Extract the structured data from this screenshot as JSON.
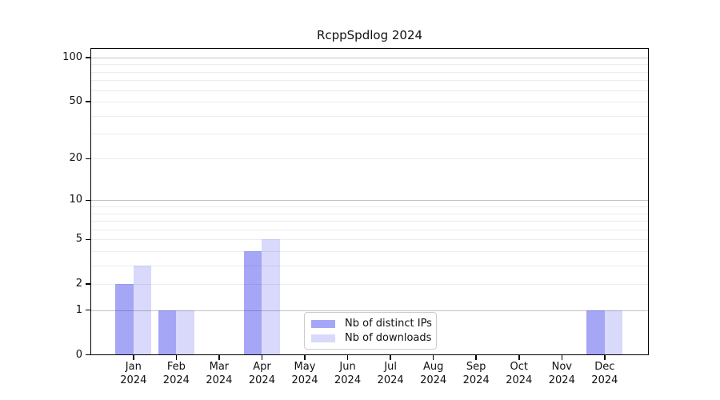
{
  "page": {
    "background": "#ffffff"
  },
  "chart_data": {
    "type": "bar",
    "title": "RcppSpdlog 2024",
    "xlabel": "",
    "ylabel": "",
    "categories": [
      "Jan",
      "Feb",
      "Mar",
      "Apr",
      "May",
      "Jun",
      "Jul",
      "Aug",
      "Sep",
      "Oct",
      "Nov",
      "Dec"
    ],
    "category_sublabel": "2024",
    "series": [
      {
        "name": "Nb of distinct IPs",
        "color": "rgba(20,20,235,0.38)",
        "values": [
          2,
          1,
          0,
          4,
          0,
          0,
          0,
          0,
          0,
          0,
          0,
          1
        ]
      },
      {
        "name": "Nb of downloads",
        "color": "rgba(20,20,235,0.16)",
        "values": [
          3,
          1,
          0,
          5,
          0,
          0,
          0,
          0,
          0,
          0,
          0,
          1
        ]
      }
    ],
    "y_axis": {
      "scale": "log1p",
      "tick_values": [
        0,
        1,
        2,
        5,
        10,
        20,
        50,
        100
      ],
      "tick_labels": [
        "0",
        "1",
        "2",
        "5",
        "10",
        "20",
        "50",
        "100"
      ],
      "ylim": [
        0,
        117
      ],
      "major_grid_values": [
        1,
        10,
        100
      ],
      "minor_grid_values": [
        2,
        3,
        4,
        5,
        6,
        7,
        8,
        9,
        20,
        30,
        40,
        50,
        60,
        70,
        80,
        90
      ]
    },
    "legend": {
      "position": "lower center inside"
    },
    "grid": true,
    "colors": {
      "major_grid": "#c3c3c3",
      "minor_grid": "#ececec",
      "frame": "#000000",
      "text": "#111111"
    }
  }
}
